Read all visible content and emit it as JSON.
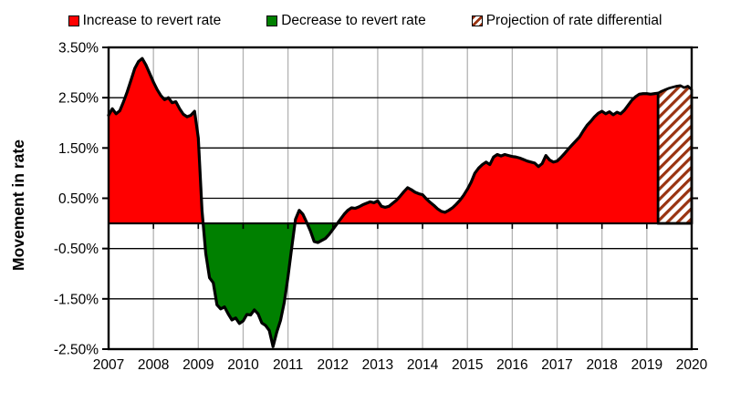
{
  "page": {
    "background": "#ffffff"
  },
  "legend": {
    "position": "top",
    "items": [
      {
        "label": "Increase to revert rate",
        "swatch": "red-square",
        "color": "#ff0000"
      },
      {
        "label": "Decrease to revert rate",
        "swatch": "green-square",
        "color": "#008000"
      },
      {
        "label": "Projection of rate differential",
        "swatch": "hatched-square",
        "color": "#993311"
      }
    ]
  },
  "chart_data": {
    "type": "area",
    "title": "",
    "xlabel": "",
    "ylabel": "Movement in rate",
    "xlim": [
      2007,
      2020
    ],
    "ylim": [
      -2.5,
      3.5
    ],
    "grid": {
      "horizontal_color": "#000000",
      "vertical_color": "#b3b3b3",
      "horizontal_on": true,
      "vertical_on": true
    },
    "legend_position": "top",
    "colors": {
      "increase": "#ff0000",
      "decrease": "#008000",
      "projection_stripe": "#993311",
      "outline": "#000000"
    },
    "y_ticks": [
      {
        "label": "3.50%",
        "value": 3.5
      },
      {
        "label": "2.50%",
        "value": 2.5
      },
      {
        "label": "1.50%",
        "value": 1.5
      },
      {
        "label": "0.50%",
        "value": 0.5
      },
      {
        "label": "-0.50%",
        "value": -0.5
      },
      {
        "label": "-1.50%",
        "value": -1.5
      },
      {
        "label": "-2.50%",
        "value": -2.5
      }
    ],
    "categories": [
      "2007",
      "2008",
      "2009",
      "2010",
      "2011",
      "2012",
      "2013",
      "2014",
      "2015",
      "2016",
      "2017",
      "2018",
      "2019",
      "2020"
    ],
    "series": [
      {
        "name": "Movement in rate (actual, monthly)",
        "style": "area-red-above-zero-green-below-zero",
        "x_start": 2007.0,
        "x_step_years": 0.083333,
        "values": [
          2.15,
          2.28,
          2.18,
          2.24,
          2.42,
          2.62,
          2.85,
          3.08,
          3.22,
          3.28,
          3.15,
          2.98,
          2.81,
          2.66,
          2.54,
          2.46,
          2.5,
          2.4,
          2.42,
          2.28,
          2.17,
          2.12,
          2.15,
          2.23,
          1.7,
          0.25,
          -0.6,
          -1.08,
          -1.18,
          -1.62,
          -1.7,
          -1.66,
          -1.8,
          -1.92,
          -1.88,
          -1.99,
          -1.94,
          -1.81,
          -1.82,
          -1.72,
          -1.8,
          -1.98,
          -2.03,
          -2.13,
          -2.45,
          -2.16,
          -1.93,
          -1.57,
          -1.06,
          -0.48,
          0.08,
          0.26,
          0.18,
          0.02,
          -0.15,
          -0.36,
          -0.38,
          -0.34,
          -0.3,
          -0.22,
          -0.12,
          -0.02,
          0.08,
          0.18,
          0.26,
          0.31,
          0.3,
          0.33,
          0.37,
          0.4,
          0.43,
          0.41,
          0.45,
          0.34,
          0.32,
          0.34,
          0.4,
          0.46,
          0.54,
          0.63,
          0.71,
          0.67,
          0.62,
          0.59,
          0.57,
          0.49,
          0.42,
          0.36,
          0.29,
          0.24,
          0.22,
          0.26,
          0.31,
          0.38,
          0.46,
          0.56,
          0.68,
          0.82,
          1.0,
          1.1,
          1.17,
          1.22,
          1.17,
          1.32,
          1.37,
          1.34,
          1.37,
          1.35,
          1.33,
          1.32,
          1.3,
          1.27,
          1.24,
          1.22,
          1.2,
          1.13,
          1.19,
          1.35,
          1.26,
          1.22,
          1.24,
          1.31,
          1.39,
          1.48,
          1.56,
          1.64,
          1.72,
          1.84,
          1.95,
          2.03,
          2.12,
          2.19,
          2.23,
          2.18,
          2.22,
          2.16,
          2.21,
          2.18,
          2.25,
          2.35,
          2.45,
          2.52,
          2.57,
          2.58,
          2.58,
          2.57,
          2.58,
          2.59
        ]
      },
      {
        "name": "Projection of rate differential",
        "style": "hatched-area",
        "x_start": 2019.25,
        "x_step_years": 0.083333,
        "values": [
          2.59,
          2.63,
          2.66,
          2.69,
          2.71,
          2.73,
          2.74,
          2.7,
          2.73,
          2.66
        ]
      }
    ]
  }
}
